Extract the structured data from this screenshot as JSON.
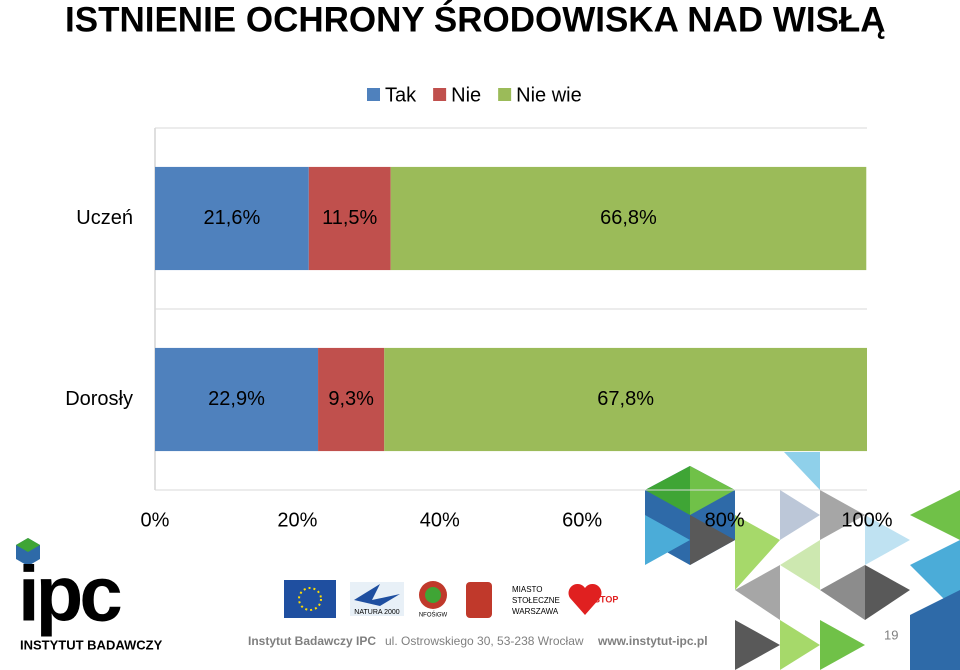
{
  "chart_data": {
    "type": "stacked-bar-horizontal",
    "title": "ISTNIENIE OCHRONY ŚRODOWISKA NAD WISŁĄ",
    "categories": [
      "Uczeń",
      "Dorosły"
    ],
    "series": [
      {
        "name": "Tak",
        "color": "#4f81bd",
        "values": [
          21.6,
          22.9
        ],
        "value_labels": [
          "21,6%",
          "22,9%"
        ]
      },
      {
        "name": "Nie",
        "color": "#c0504d",
        "values": [
          11.5,
          9.3
        ],
        "value_labels": [
          "11,5%",
          "9,3%"
        ]
      },
      {
        "name": "Nie wie",
        "color": "#9bbb59",
        "values": [
          66.8,
          67.8
        ],
        "value_labels": [
          "66,8%",
          "67,8%"
        ]
      }
    ],
    "xlim": [
      0,
      100
    ],
    "xticks": [
      {
        "value": 0,
        "label": "0%"
      },
      {
        "value": 20,
        "label": "20%"
      },
      {
        "value": 40,
        "label": "40%"
      },
      {
        "value": 60,
        "label": "60%"
      },
      {
        "value": 80,
        "label": "80%"
      },
      {
        "value": 100,
        "label": "100%"
      }
    ],
    "legend": "top",
    "grid": false
  },
  "footer": {
    "institute": "Instytut Badawczy IPC",
    "address": "ul. Ostrowskiego 30, 53-238 Wrocław",
    "website": "www.instytut-ipc.pl",
    "page": "19"
  },
  "logo": {
    "mark": "ipc",
    "caption": "INSTYTUT BADAWCZY"
  },
  "partners": [
    "NATURA 2000",
    "NFOŚiGW",
    "MIASTO",
    "STOŁECZNE",
    "WARSZAWA",
    "STOP"
  ]
}
